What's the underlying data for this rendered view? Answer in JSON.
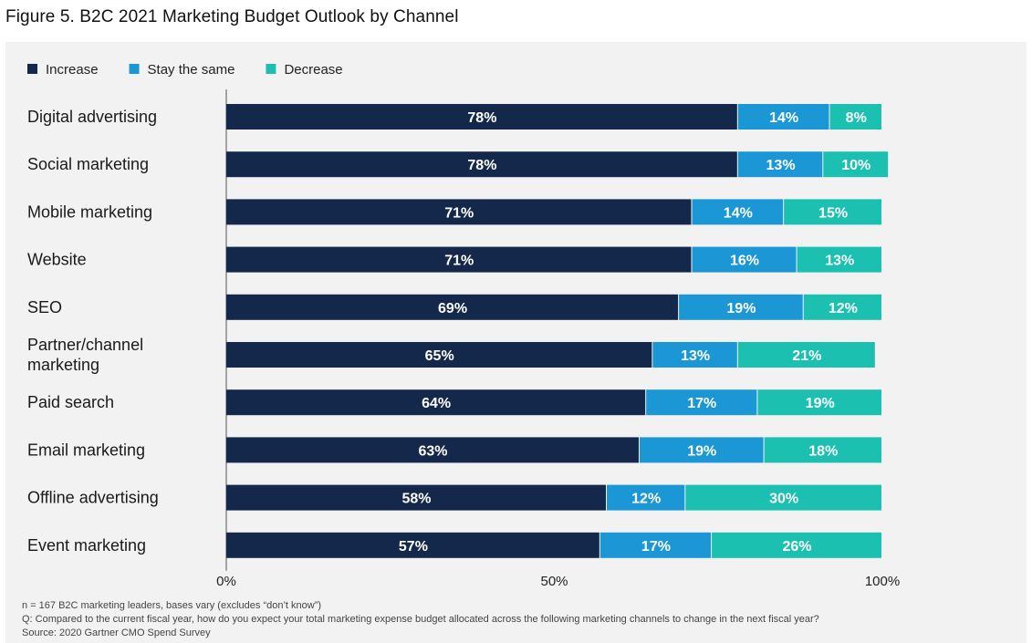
{
  "title": "Figure 5. B2C 2021 Marketing Budget Outlook by Channel",
  "colors": {
    "increase": "#14284b",
    "same": "#1c97d6",
    "decrease": "#1bc0b0",
    "panel": "#f2f2f2"
  },
  "chart_data": {
    "type": "bar",
    "orientation": "horizontal",
    "stacked": true,
    "categories": [
      "Digital advertising",
      "Social marketing",
      "Mobile marketing",
      "Website",
      "SEO",
      "Partner/channel marketing",
      "Paid search",
      "Email marketing",
      "Offline advertising",
      "Event marketing"
    ],
    "series": [
      {
        "name": "Increase",
        "color": "#14284b",
        "values": [
          78,
          78,
          71,
          71,
          69,
          65,
          64,
          63,
          58,
          57
        ]
      },
      {
        "name": "Stay the same",
        "color": "#1c97d6",
        "values": [
          14,
          13,
          14,
          16,
          19,
          13,
          17,
          19,
          12,
          17
        ]
      },
      {
        "name": "Decrease",
        "color": "#1bc0b0",
        "values": [
          8,
          10,
          15,
          13,
          12,
          21,
          19,
          18,
          30,
          26
        ]
      }
    ],
    "xlim": [
      0,
      100
    ],
    "x_ticks": [
      "0%",
      "50%",
      "100%"
    ],
    "value_suffix": "%",
    "legend_position": "top-left",
    "grid": false
  },
  "notes": [
    "n = 167 B2C marketing leaders, bases vary (excludes “don’t know”)",
    "Q: Compared to the current fiscal year, how do you expect your total marketing expense budget allocated across the following marketing channels to change in the next fiscal year?",
    "Source: 2020 Gartner CMO Spend Survey"
  ]
}
